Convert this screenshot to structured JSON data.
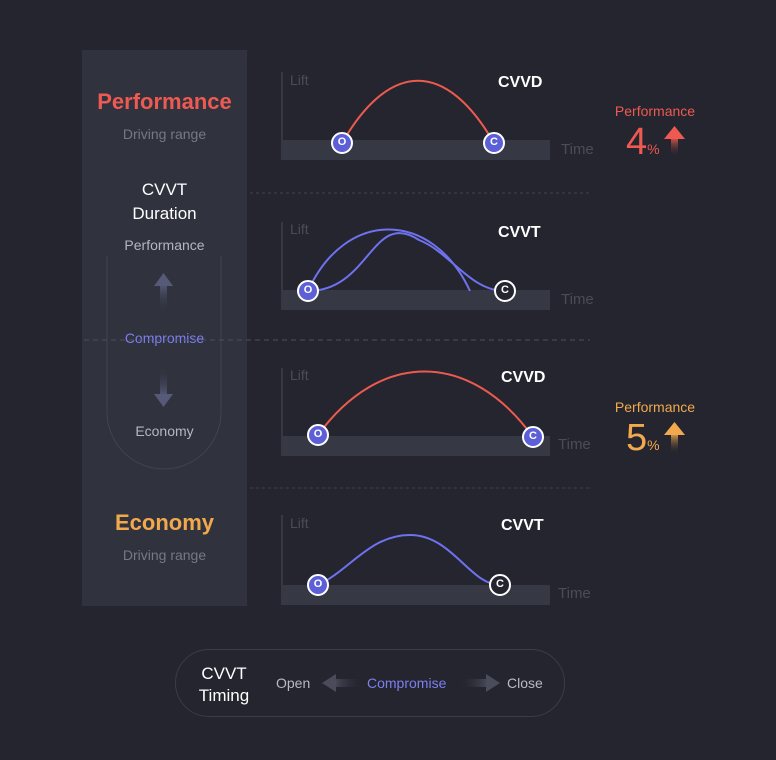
{
  "left_panel": {
    "performance_title": "Performance",
    "performance_sub": "Driving range",
    "cvvt_duration_line1": "CVVT",
    "cvvt_duration_line2": "Duration",
    "scale_top": "Performance",
    "scale_mid": "Compromise",
    "scale_bottom": "Economy",
    "economy_title": "Economy",
    "economy_sub": "Driving range"
  },
  "axis": {
    "lift": "Lift",
    "time": "Time"
  },
  "charts": [
    {
      "title": "CVVD",
      "open_label": "O",
      "close_label": "C"
    },
    {
      "title": "CVVT",
      "open_label": "O",
      "close_label": "C"
    },
    {
      "title": "CVVD",
      "open_label": "O",
      "close_label": "C"
    },
    {
      "title": "CVVT",
      "open_label": "O",
      "close_label": "C"
    }
  ],
  "gains": [
    {
      "label": "Performance",
      "value": "4",
      "unit": "%"
    },
    {
      "label": "Performance",
      "value": "5",
      "unit": "%"
    }
  ],
  "timing": {
    "line1": "CVVT",
    "line2": "Timing",
    "open": "Open",
    "compromise": "Compromise",
    "close": "Close"
  },
  "colors": {
    "performance": "#ee5a52",
    "economy": "#f2a94e",
    "compromise": "#7d7ff0",
    "cvvt_curve": "#6f72ee",
    "cvvd_curve": "#ec5a50"
  }
}
